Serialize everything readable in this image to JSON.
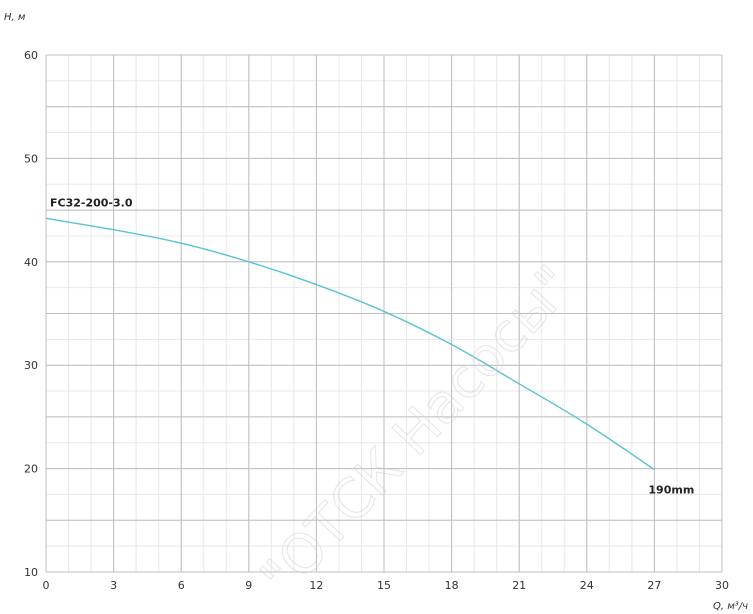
{
  "chart_data": {
    "type": "line",
    "xlabel": "Q, м³/ч",
    "ylabel": "H, м",
    "xlim": [
      0,
      30
    ],
    "ylim": [
      10,
      60
    ],
    "xticks": [
      0,
      3,
      6,
      9,
      12,
      15,
      18,
      21,
      24,
      27,
      30
    ],
    "yticks": [
      10,
      20,
      30,
      40,
      50,
      60
    ],
    "grid": true,
    "colors": {
      "curve": "#5bc3d1",
      "major_grid": "#bfbfbf",
      "minor_grid": "#e8e8e8"
    },
    "series": [
      {
        "name": "FC32-200-3.0",
        "end_label": "190mm",
        "x": [
          0,
          3,
          6,
          9,
          12,
          15,
          18,
          21,
          24,
          27
        ],
        "y": [
          44.2,
          43.1,
          41.8,
          40.0,
          37.8,
          35.2,
          32.0,
          28.2,
          24.3,
          19.9
        ]
      }
    ],
    "watermark": "\"ОТСК Насосы\""
  }
}
